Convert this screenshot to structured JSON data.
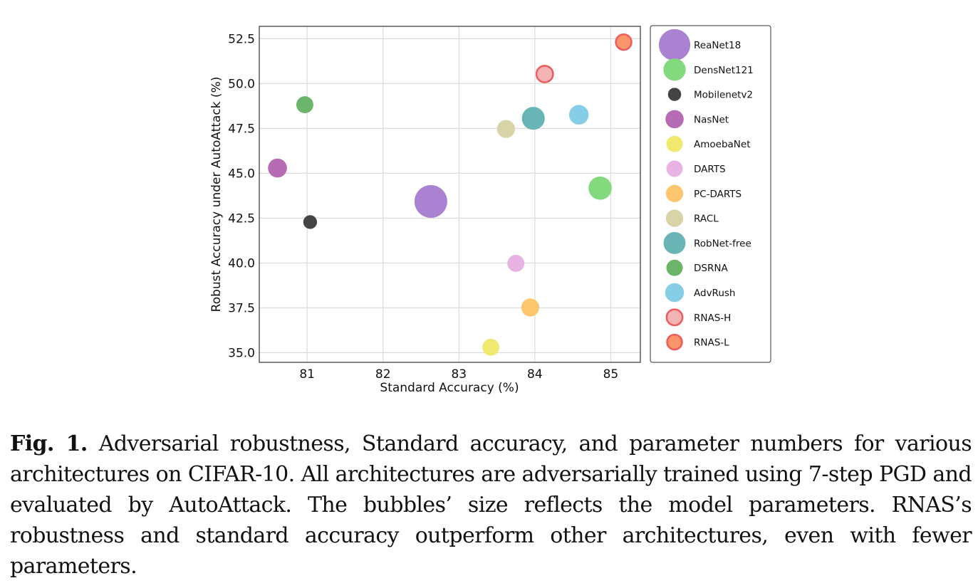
{
  "chart_data": {
    "type": "scatter",
    "subtype": "bubble",
    "title": "",
    "xlabel": "Standard Accuracy (%)",
    "ylabel": "Robust Accuracy under AutoAttack (%)",
    "xlim": [
      80.37,
      85.39
    ],
    "ylim": [
      34.46,
      53.19
    ],
    "xticks": [
      81,
      82,
      83,
      84,
      85
    ],
    "xtick_labels": [
      "81",
      "82",
      "83",
      "84",
      "85"
    ],
    "yticks": [
      35.0,
      37.5,
      40.0,
      42.5,
      45.0,
      47.5,
      50.0,
      52.5
    ],
    "ytick_labels": [
      "35.0",
      "37.5",
      "40.0",
      "42.5",
      "45.0",
      "47.5",
      "50.0",
      "52.5"
    ],
    "grid": true,
    "legend_position": "outside-right",
    "size_encodes": "model parameters (relative)",
    "series": [
      {
        "name": "ReaNet18",
        "x": 82.63,
        "y": 43.43,
        "relative_size": 1.0,
        "color": "#a87fd1",
        "edge": null
      },
      {
        "name": "DensNet121",
        "x": 84.86,
        "y": 44.17,
        "relative_size": 0.71,
        "color": "#7fd87b",
        "edge": null
      },
      {
        "name": "Mobilenetv2",
        "x": 81.04,
        "y": 42.28,
        "relative_size": 0.42,
        "color": "#404040",
        "edge": null
      },
      {
        "name": "NasNet",
        "x": 80.61,
        "y": 45.29,
        "relative_size": 0.58,
        "color": "#b469b1",
        "edge": null
      },
      {
        "name": "AmoebaNet",
        "x": 83.42,
        "y": 35.3,
        "relative_size": 0.52,
        "color": "#f0e96c",
        "edge": null
      },
      {
        "name": "DARTS",
        "x": 83.75,
        "y": 39.98,
        "relative_size": 0.52,
        "color": "#e6b1e2",
        "edge": null
      },
      {
        "name": "PC-DARTS",
        "x": 83.94,
        "y": 37.52,
        "relative_size": 0.55,
        "color": "#fcc66b",
        "edge": null
      },
      {
        "name": "RACL",
        "x": 83.62,
        "y": 47.47,
        "relative_size": 0.55,
        "color": "#d8d3a6",
        "edge": null
      },
      {
        "name": "RobNet-free",
        "x": 83.98,
        "y": 48.06,
        "relative_size": 0.7,
        "color": "#66b2b2",
        "edge": null
      },
      {
        "name": "DSRNA",
        "x": 80.97,
        "y": 48.82,
        "relative_size": 0.52,
        "color": "#67b467",
        "edge": null
      },
      {
        "name": "AdvRush",
        "x": 84.58,
        "y": 48.26,
        "relative_size": 0.6,
        "color": "#84cde6",
        "edge": null
      },
      {
        "name": "RNAS-H",
        "x": 84.13,
        "y": 50.53,
        "relative_size": 0.55,
        "color": "#f4b3b5",
        "edge": "#ef5a5c"
      },
      {
        "name": "RNAS-L",
        "x": 85.17,
        "y": 52.31,
        "relative_size": 0.52,
        "color": "#fa9266",
        "edge": "#ef5a5c"
      }
    ]
  },
  "caption": {
    "label": "Fig. 1.",
    "text": "Adversarial robustness, Standard accuracy, and parameter numbers for various architectures on CIFAR-10. All architectures are adversarially trained using 7-step PGD and evaluated by AutoAttack. The bubbles’ size reflects the model parameters. RNAS’s robustness and standard accuracy outperform other architectures, even with fewer parameters."
  }
}
